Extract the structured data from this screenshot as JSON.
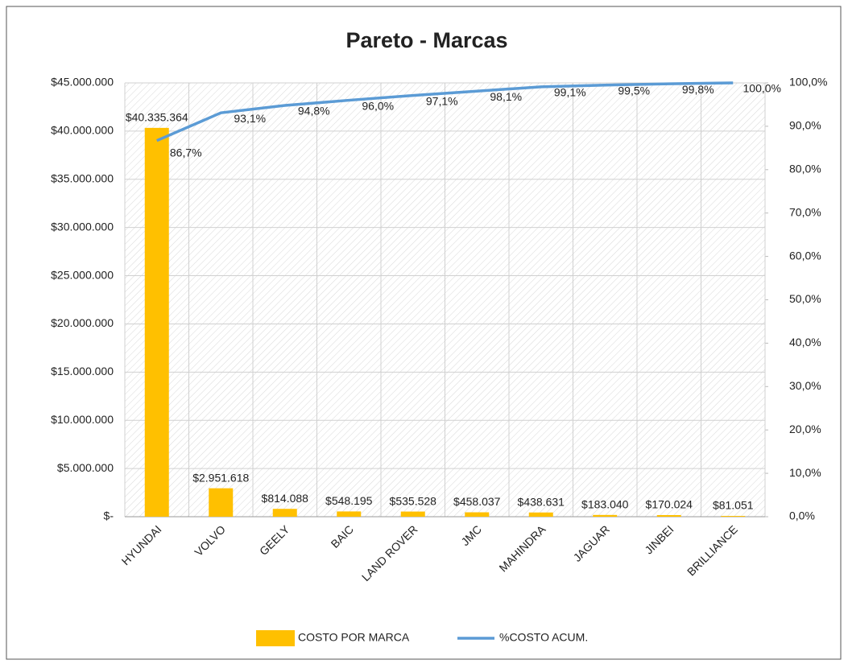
{
  "chart_data": {
    "type": "combo",
    "title": "Pareto - Marcas",
    "categories": [
      "HYUNDAI",
      "VOLVO",
      "GEELY",
      "BAIC",
      "LAND ROVER",
      "JMC",
      "MAHINDRA",
      "JAGUAR",
      "JINBEI",
      "BRILLIANCE"
    ],
    "series": [
      {
        "name": "COSTO POR MARCA",
        "type": "bar",
        "color": "#ffc000",
        "values": [
          40335364,
          2951618,
          814088,
          548195,
          535528,
          458037,
          438631,
          183040,
          170024,
          81051
        ],
        "value_labels": [
          "$40.335.364",
          "$2.951.618",
          "$814.088",
          "$548.195",
          "$535.528",
          "$458.037",
          "$438.631",
          "$183.040",
          "$170.024",
          "$81.051"
        ]
      },
      {
        "name": "%COSTO ACUM.",
        "type": "line",
        "axis": "y2",
        "color": "#5b9bd5",
        "values": [
          86.7,
          93.1,
          94.8,
          96.0,
          97.1,
          98.1,
          99.1,
          99.5,
          99.8,
          100.0
        ],
        "value_labels": [
          "86,7%",
          "93,1%",
          "94,8%",
          "96,0%",
          "97,1%",
          "98,1%",
          "99,1%",
          "99,5%",
          "99,8%",
          "100,0%"
        ]
      }
    ],
    "ylim": [
      0,
      45000000
    ],
    "yticks": [
      {
        "value": 0,
        "label": "$-"
      },
      {
        "value": 5000000,
        "label": "$5.000.000"
      },
      {
        "value": 10000000,
        "label": "$10.000.000"
      },
      {
        "value": 15000000,
        "label": "$15.000.000"
      },
      {
        "value": 20000000,
        "label": "$20.000.000"
      },
      {
        "value": 25000000,
        "label": "$25.000.000"
      },
      {
        "value": 30000000,
        "label": "$30.000.000"
      },
      {
        "value": 35000000,
        "label": "$35.000.000"
      },
      {
        "value": 40000000,
        "label": "$40.000.000"
      },
      {
        "value": 45000000,
        "label": "$45.000.000"
      }
    ],
    "y2lim": [
      0,
      100
    ],
    "y2ticks": [
      {
        "value": 0,
        "label": "0,0%"
      },
      {
        "value": 10,
        "label": "10,0%"
      },
      {
        "value": 20,
        "label": "20,0%"
      },
      {
        "value": 30,
        "label": "30,0%"
      },
      {
        "value": 40,
        "label": "40,0%"
      },
      {
        "value": 50,
        "label": "50,0%"
      },
      {
        "value": 60,
        "label": "60,0%"
      },
      {
        "value": 70,
        "label": "70,0%"
      },
      {
        "value": 80,
        "label": "80,0%"
      },
      {
        "value": 90,
        "label": "90,0%"
      },
      {
        "value": 100,
        "label": "100,0%"
      }
    ],
    "grid": true,
    "legend": "bottom"
  }
}
